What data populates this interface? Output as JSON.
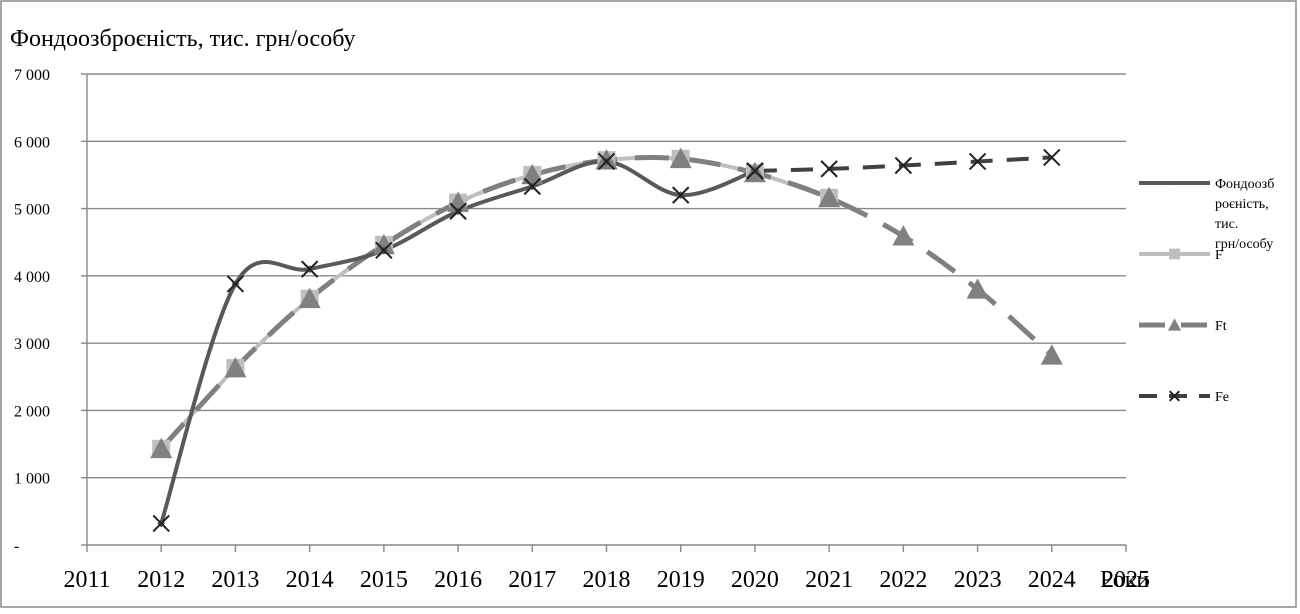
{
  "chart_data": {
    "type": "line",
    "title": "Фондоозброєність, тис. грн/особу",
    "xlabel": "Роки",
    "ylabel": "",
    "xlim": [
      2011,
      2025
    ],
    "ylim": [
      0,
      7000
    ],
    "x_ticks": [
      "2011",
      "2012",
      "2013",
      "2014",
      "2015",
      "2016",
      "2017",
      "2018",
      "2019",
      "2020",
      "2021",
      "2022",
      "2023",
      "2024",
      "2025"
    ],
    "y_ticks": [
      {
        "value": 0,
        "label": "-"
      },
      {
        "value": 1000,
        "label": "1 000"
      },
      {
        "value": 2000,
        "label": "2 000"
      },
      {
        "value": 3000,
        "label": "3 000"
      },
      {
        "value": 4000,
        "label": "4 000"
      },
      {
        "value": 5000,
        "label": "5 000"
      },
      {
        "value": 6000,
        "label": "6 000"
      },
      {
        "value": 7000,
        "label": "7 000"
      }
    ],
    "grid": "horizontal",
    "legend_position": "right",
    "series": [
      {
        "name": "Фондоозброєність, тис. грн/особу",
        "legend_lines": [
          "Фондоозб",
          "роєність,",
          "тис.",
          "грн/особу"
        ],
        "color": "#595959",
        "marker": "diamond",
        "dash": "solid",
        "x": [
          2012,
          2013,
          2014,
          2015,
          2016,
          2017,
          2018,
          2019,
          2020
        ],
        "values": [
          320,
          3880,
          4100,
          4380,
          4960,
          5330,
          5700,
          5200,
          5560
        ]
      },
      {
        "name": "F",
        "legend_lines": [
          "F"
        ],
        "color": "#bfbfbf",
        "marker": "square",
        "dash": "solid",
        "x": [
          2012,
          2013,
          2014,
          2015,
          2016,
          2017,
          2018,
          2019,
          2020,
          2021
        ],
        "values": [
          1430,
          2630,
          3660,
          4460,
          5090,
          5500,
          5720,
          5740,
          5530,
          5160
        ]
      },
      {
        "name": "Ft",
        "legend_lines": [
          "Ft"
        ],
        "color": "#808080",
        "marker": "triangle",
        "dash": "longdash",
        "x": [
          2012,
          2013,
          2014,
          2015,
          2016,
          2017,
          2018,
          2019,
          2020,
          2021,
          2022,
          2023,
          2024
        ],
        "values": [
          1430,
          2630,
          3660,
          4460,
          5090,
          5500,
          5720,
          5740,
          5530,
          5160,
          4590,
          3800,
          2820
        ]
      },
      {
        "name": "Fe",
        "legend_lines": [
          "Fe"
        ],
        "color": "#404040",
        "marker": "x",
        "dash": "dash",
        "x": [
          2020,
          2021,
          2022,
          2023,
          2024
        ],
        "values": [
          5560,
          5590,
          5640,
          5700,
          5760
        ]
      }
    ]
  }
}
